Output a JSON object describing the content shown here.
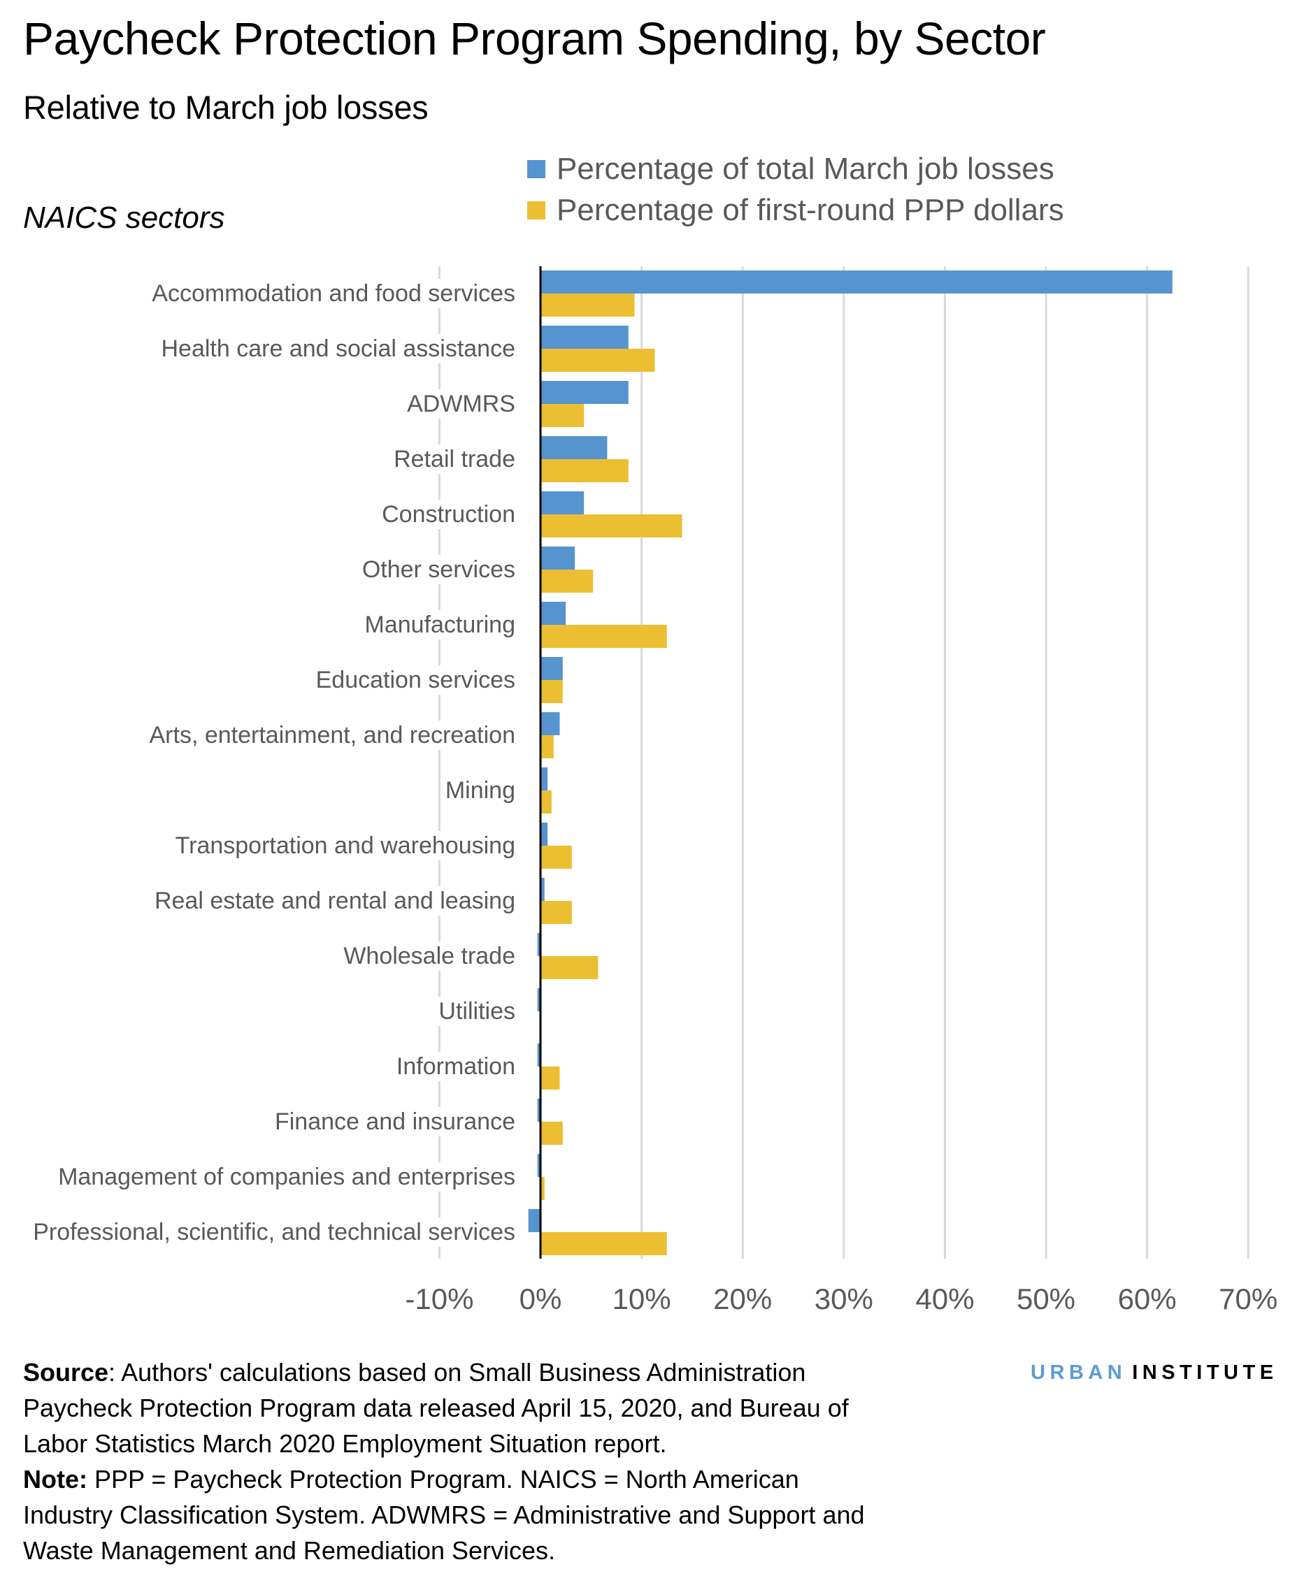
{
  "title": "Paycheck Protection Program Spending, by Sector",
  "subtitle": "Relative to March job losses",
  "colors": {
    "blue": "#5694d0",
    "yellow": "#ecbe32",
    "grid": "#d9d9d9",
    "axis": "#000000",
    "label": "#595959"
  },
  "chart_data": {
    "type": "bar",
    "orientation": "horizontal",
    "title": "Paycheck Protection Program Spending, by Sector",
    "subtitle": "Relative to March job losses",
    "ylabel": "NAICS sectors",
    "xlabel": "",
    "xlim": [
      -10,
      70
    ],
    "x_unit": "%",
    "grid": true,
    "legend_position": "top",
    "x_ticks": [
      "-10%",
      "0%",
      "10%",
      "20%",
      "30%",
      "40%",
      "50%",
      "60%",
      "70%"
    ],
    "x_tick_values": [
      -10,
      0,
      10,
      20,
      30,
      40,
      50,
      60,
      70
    ],
    "categories": [
      "Accommodation and food services",
      "Health care and social assistance",
      "ADWMRS",
      "Retail trade",
      "Construction",
      "Other services",
      "Manufacturing",
      "Education services",
      "Arts, entertainment, and recreation",
      "Mining",
      "Transportation and warehousing",
      "Real estate and rental and leasing",
      "Wholesale trade",
      "Utilities",
      "Information",
      "Finance and insurance",
      "Management of companies and enterprises",
      "Professional, scientific, and technical services"
    ],
    "series": [
      {
        "name": "Percentage of total March job losses",
        "color": "#5694d0",
        "values": [
          62.5,
          8.7,
          8.7,
          6.6,
          4.3,
          3.4,
          2.5,
          2.2,
          1.9,
          0.7,
          0.7,
          0.4,
          -0.3,
          -0.3,
          -0.3,
          -0.3,
          -0.3,
          -1.2
        ]
      },
      {
        "name": "Percentage of first-round PPP dollars",
        "color": "#ecbe32",
        "values": [
          9.3,
          11.3,
          4.3,
          8.7,
          14.0,
          5.2,
          12.5,
          2.2,
          1.3,
          1.1,
          3.1,
          3.1,
          5.7,
          0.0,
          1.9,
          2.2,
          0.4,
          12.5
        ]
      }
    ]
  },
  "notes": {
    "source_label": "Source",
    "source_lines": [
      ": Authors' calculations based on Small Business Administration",
      "Paycheck Protection Program data released April 15, 2020, and Bureau of",
      "Labor Statistics March 2020 Employment Situation report."
    ],
    "note_label": "Note:",
    "note_lines": [
      " PPP = Paycheck Protection Program. NAICS = North American",
      "Industry Classification System. ADWMRS = Administrative and Support and",
      "Waste Management and Remediation Services."
    ]
  },
  "logo": {
    "part1": "URBAN",
    "part2": "INSTITUTE"
  }
}
